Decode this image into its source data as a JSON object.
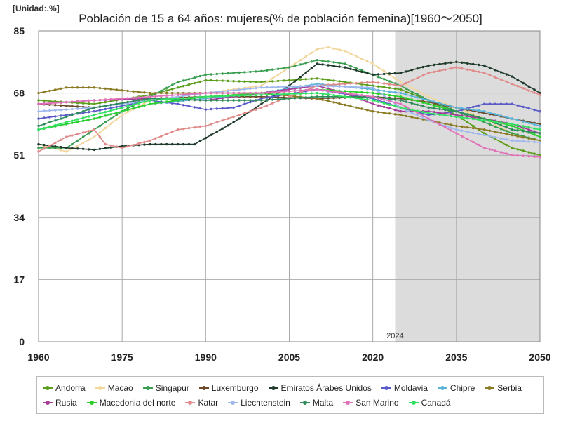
{
  "chart_data": {
    "type": "line",
    "title": "Población de 15 a 64 años: mujeres(% de población femenina)[1960～2050]",
    "unit_label": "[Unidad:.%]",
    "xlim": [
      1960,
      2050
    ],
    "ylim": [
      0,
      85
    ],
    "x_ticks": [
      "1960",
      "1975",
      "1990",
      "2005",
      "2020",
      "2035",
      "2050"
    ],
    "y_ticks": [
      "0",
      "17",
      "34",
      "51",
      "68",
      "85"
    ],
    "projection_start": 2024,
    "projection_label": "2024",
    "series": [
      {
        "name": "Andorra",
        "color": "#5a9e1a",
        "points": [
          [
            1960,
            66
          ],
          [
            1970,
            65
          ],
          [
            1980,
            67.5
          ],
          [
            1990,
            71.5
          ],
          [
            2000,
            71
          ],
          [
            2010,
            72
          ],
          [
            2020,
            70
          ],
          [
            2025,
            69
          ],
          [
            2030,
            66
          ],
          [
            2035,
            62
          ],
          [
            2040,
            57
          ],
          [
            2045,
            53
          ],
          [
            2050,
            51
          ]
        ]
      },
      {
        "name": "Macao",
        "color": "#f2d79c",
        "points": [
          [
            1960,
            54
          ],
          [
            1965,
            52
          ],
          [
            1970,
            56
          ],
          [
            1975,
            62
          ],
          [
            1980,
            66
          ],
          [
            1990,
            68
          ],
          [
            2000,
            70
          ],
          [
            2005,
            75
          ],
          [
            2010,
            80
          ],
          [
            2012,
            80.5
          ],
          [
            2015,
            79.5
          ],
          [
            2020,
            76
          ],
          [
            2025,
            71
          ],
          [
            2030,
            67
          ],
          [
            2035,
            64
          ],
          [
            2040,
            61
          ],
          [
            2045,
            57
          ],
          [
            2050,
            55
          ]
        ]
      },
      {
        "name": "Singapur",
        "color": "#3a9e50",
        "points": [
          [
            1960,
            53
          ],
          [
            1965,
            53
          ],
          [
            1970,
            58
          ],
          [
            1975,
            63
          ],
          [
            1980,
            67
          ],
          [
            1985,
            71
          ],
          [
            1990,
            73
          ],
          [
            2000,
            74
          ],
          [
            2005,
            75
          ],
          [
            2010,
            77
          ],
          [
            2015,
            76
          ],
          [
            2020,
            73
          ],
          [
            2025,
            70
          ],
          [
            2030,
            66
          ],
          [
            2035,
            63
          ],
          [
            2040,
            60
          ],
          [
            2045,
            57
          ],
          [
            2050,
            55
          ]
        ]
      },
      {
        "name": "Luxemburgo",
        "color": "#6b4a2a",
        "points": [
          [
            1960,
            65
          ],
          [
            1970,
            64
          ],
          [
            1980,
            66.5
          ],
          [
            1990,
            67
          ],
          [
            2000,
            67
          ],
          [
            2010,
            66.5
          ],
          [
            2020,
            67
          ],
          [
            2025,
            66.5
          ],
          [
            2030,
            65.5
          ],
          [
            2035,
            64
          ],
          [
            2040,
            62.5
          ],
          [
            2045,
            61
          ],
          [
            2050,
            59.5
          ]
        ]
      },
      {
        "name": "Emiratos Árabes Unidos",
        "color": "#1e3a2a",
        "points": [
          [
            1960,
            54
          ],
          [
            1965,
            53
          ],
          [
            1970,
            52.5
          ],
          [
            1975,
            53.5
          ],
          [
            1980,
            54
          ],
          [
            1988,
            54
          ],
          [
            1995,
            60
          ],
          [
            2000,
            65
          ],
          [
            2005,
            70
          ],
          [
            2010,
            76
          ],
          [
            2015,
            75
          ],
          [
            2020,
            73
          ],
          [
            2025,
            73.5
          ],
          [
            2030,
            75.5
          ],
          [
            2035,
            76.5
          ],
          [
            2040,
            75.5
          ],
          [
            2045,
            72.5
          ],
          [
            2050,
            68
          ]
        ]
      },
      {
        "name": "Moldavia",
        "color": "#5a5ac8",
        "points": [
          [
            1960,
            61
          ],
          [
            1970,
            63
          ],
          [
            1980,
            66
          ],
          [
            1985,
            65
          ],
          [
            1990,
            63.5
          ],
          [
            1995,
            64
          ],
          [
            2000,
            66.5
          ],
          [
            2010,
            69
          ],
          [
            2020,
            66.5
          ],
          [
            2025,
            64
          ],
          [
            2030,
            62
          ],
          [
            2035,
            63
          ],
          [
            2040,
            65
          ],
          [
            2045,
            65
          ],
          [
            2050,
            63
          ]
        ]
      },
      {
        "name": "Chipre",
        "color": "#5ab4d8",
        "points": [
          [
            1960,
            58
          ],
          [
            1970,
            61
          ],
          [
            1980,
            65
          ],
          [
            1990,
            66.5
          ],
          [
            2000,
            68
          ],
          [
            2010,
            70.5
          ],
          [
            2020,
            69
          ],
          [
            2025,
            68
          ],
          [
            2030,
            66
          ],
          [
            2035,
            64
          ],
          [
            2040,
            63
          ],
          [
            2045,
            61
          ],
          [
            2050,
            59
          ]
        ]
      },
      {
        "name": "Serbia",
        "color": "#8a7a22",
        "points": [
          [
            1960,
            68
          ],
          [
            1965,
            69.5
          ],
          [
            1970,
            69.5
          ],
          [
            1980,
            68
          ],
          [
            1990,
            68
          ],
          [
            2000,
            68
          ],
          [
            2010,
            66.5
          ],
          [
            2020,
            63
          ],
          [
            2025,
            62
          ],
          [
            2030,
            60.5
          ],
          [
            2035,
            59
          ],
          [
            2040,
            58
          ],
          [
            2045,
            56.5
          ],
          [
            2050,
            55
          ]
        ]
      },
      {
        "name": "Rusia",
        "color": "#a83a9a",
        "points": [
          [
            1960,
            65
          ],
          [
            1970,
            66
          ],
          [
            1980,
            66.5
          ],
          [
            1990,
            66
          ],
          [
            2000,
            68
          ],
          [
            2010,
            70
          ],
          [
            2015,
            68
          ],
          [
            2020,
            65
          ],
          [
            2025,
            63
          ],
          [
            2030,
            63
          ],
          [
            2035,
            62
          ],
          [
            2040,
            61
          ],
          [
            2045,
            59.5
          ],
          [
            2050,
            57
          ]
        ]
      },
      {
        "name": "Macedonia del norte",
        "color": "#28d028",
        "points": [
          [
            1960,
            58
          ],
          [
            1970,
            61
          ],
          [
            1980,
            65
          ],
          [
            1990,
            67
          ],
          [
            2000,
            68
          ],
          [
            2010,
            69
          ],
          [
            2020,
            68
          ],
          [
            2025,
            67
          ],
          [
            2030,
            65
          ],
          [
            2035,
            63
          ],
          [
            2040,
            61
          ],
          [
            2045,
            59
          ],
          [
            2050,
            56
          ]
        ]
      },
      {
        "name": "Katar",
        "color": "#e08a8a",
        "points": [
          [
            1960,
            52
          ],
          [
            1965,
            56
          ],
          [
            1970,
            58
          ],
          [
            1972,
            54
          ],
          [
            1975,
            53
          ],
          [
            1980,
            55
          ],
          [
            1985,
            58
          ],
          [
            1990,
            59
          ],
          [
            2000,
            64
          ],
          [
            2010,
            70
          ],
          [
            2020,
            71
          ],
          [
            2025,
            70
          ],
          [
            2030,
            73.5
          ],
          [
            2035,
            75
          ],
          [
            2040,
            73.5
          ],
          [
            2045,
            70.5
          ],
          [
            2050,
            67.5
          ]
        ]
      },
      {
        "name": "Liechtenstein",
        "color": "#a0b8ee",
        "points": [
          [
            1960,
            63
          ],
          [
            1970,
            64
          ],
          [
            1980,
            66
          ],
          [
            1990,
            68
          ],
          [
            2000,
            69.5
          ],
          [
            2010,
            70
          ],
          [
            2020,
            69.5
          ],
          [
            2025,
            64
          ],
          [
            2030,
            60.5
          ],
          [
            2035,
            58
          ],
          [
            2040,
            56.5
          ],
          [
            2045,
            55
          ],
          [
            2050,
            54.5
          ]
        ]
      },
      {
        "name": "Malta",
        "color": "#2e8c5c",
        "points": [
          [
            1960,
            59
          ],
          [
            1970,
            64
          ],
          [
            1980,
            66.5
          ],
          [
            1990,
            66
          ],
          [
            2000,
            66
          ],
          [
            2010,
            67
          ],
          [
            2020,
            67
          ],
          [
            2025,
            66
          ],
          [
            2030,
            64
          ],
          [
            2035,
            63
          ],
          [
            2040,
            61
          ],
          [
            2045,
            58
          ],
          [
            2050,
            57
          ]
        ]
      },
      {
        "name": "San Marino",
        "color": "#e070b8",
        "points": [
          [
            1960,
            65
          ],
          [
            1970,
            66
          ],
          [
            1980,
            67
          ],
          [
            1990,
            68
          ],
          [
            2000,
            68
          ],
          [
            2010,
            69
          ],
          [
            2020,
            67
          ],
          [
            2025,
            65
          ],
          [
            2030,
            61
          ],
          [
            2035,
            57
          ],
          [
            2040,
            53
          ],
          [
            2045,
            51
          ],
          [
            2050,
            50.5
          ]
        ]
      },
      {
        "name": "Canadá",
        "color": "#30e060",
        "points": [
          [
            1960,
            58
          ],
          [
            1970,
            62
          ],
          [
            1980,
            66
          ],
          [
            1990,
            67
          ],
          [
            2000,
            67.5
          ],
          [
            2010,
            68
          ],
          [
            2020,
            66
          ],
          [
            2025,
            64
          ],
          [
            2030,
            62.5
          ],
          [
            2035,
            61.5
          ],
          [
            2040,
            60.5
          ],
          [
            2045,
            59.5
          ],
          [
            2050,
            58
          ]
        ]
      }
    ]
  }
}
